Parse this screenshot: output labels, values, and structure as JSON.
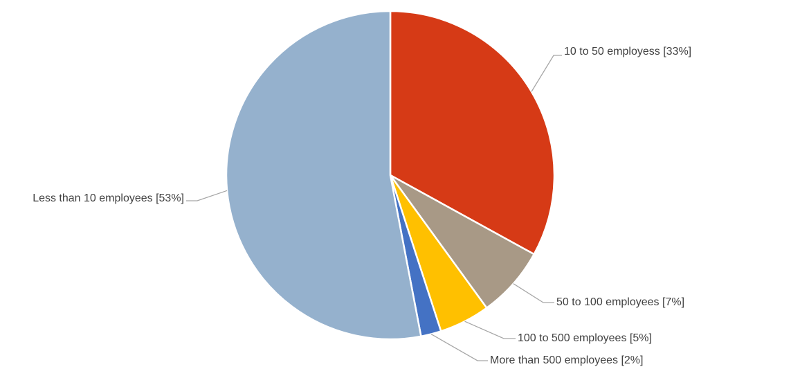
{
  "chart_data": {
    "type": "pie",
    "categories": [
      "10 to 50 employess [33%]",
      "50 to 100 employees [7%]",
      "100 to 500 employees [5%]",
      "More than 500 employees [2%]",
      "Less than 10 employees [53%]"
    ],
    "values": [
      33,
      7,
      5,
      2,
      53
    ],
    "colors": [
      "#d63a16",
      "#a89986",
      "#ffc000",
      "#4472c4",
      "#95b1cd"
    ]
  }
}
